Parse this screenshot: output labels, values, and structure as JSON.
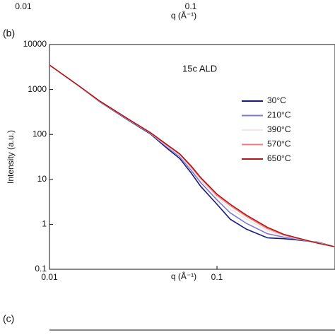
{
  "chart_data": {
    "type": "line",
    "panel_label": "(b)",
    "annotation": "15c ALD",
    "x_label": "q (Å⁻¹)",
    "y_label": "Intensity (a.u.)",
    "log_x": true,
    "log_y": true,
    "xlim": [
      0.01,
      0.5
    ],
    "ylim": [
      0.1,
      10000
    ],
    "xticks": [
      0.01,
      0.1
    ],
    "yticks": [
      0.1,
      1,
      10,
      100,
      1000,
      10000
    ],
    "x": [
      0.01,
      0.015,
      0.02,
      0.03,
      0.04,
      0.05,
      0.06,
      0.07,
      0.08,
      0.1,
      0.12,
      0.15,
      0.2,
      0.25,
      0.3,
      0.4,
      0.5
    ],
    "series": [
      {
        "name": "30°C",
        "color": "#1a1a7a",
        "values": [
          3500,
          1200,
          530,
          200,
          103,
          50,
          29,
          14,
          7,
          2.8,
          1.3,
          0.78,
          0.5,
          0.48,
          0.45,
          0.4,
          0.32
        ]
      },
      {
        "name": "210°C",
        "color": "#7b7bd6",
        "values": [
          3500,
          1200,
          540,
          205,
          106,
          54,
          32,
          16,
          8.5,
          3.5,
          1.8,
          1.05,
          0.62,
          0.52,
          0.47,
          0.39,
          0.32
        ]
      },
      {
        "name": "390°C",
        "color": "#f2e6e6",
        "values": [
          3500,
          1200,
          540,
          208,
          108,
          56,
          34,
          17.5,
          9.5,
          4,
          2.2,
          1.3,
          0.72,
          0.56,
          0.48,
          0.39,
          0.32
        ]
      },
      {
        "name": "570°C",
        "color": "#f08080",
        "values": [
          3500,
          1200,
          545,
          210,
          109,
          58,
          36,
          19,
          10.5,
          4.4,
          2.6,
          1.5,
          0.8,
          0.58,
          0.49,
          0.38,
          0.32
        ]
      },
      {
        "name": "650°C",
        "color": "#b01818",
        "values": [
          3500,
          1200,
          550,
          212,
          110,
          60,
          37,
          20,
          11,
          4.7,
          2.8,
          1.6,
          0.86,
          0.6,
          0.5,
          0.38,
          0.32
        ]
      }
    ]
  },
  "previous_panel": {
    "xtick_left": "0.01",
    "xtick_right": "0.1",
    "x_label": "q (Å⁻¹)"
  },
  "next_panel": {
    "panel_label": "(c)"
  }
}
